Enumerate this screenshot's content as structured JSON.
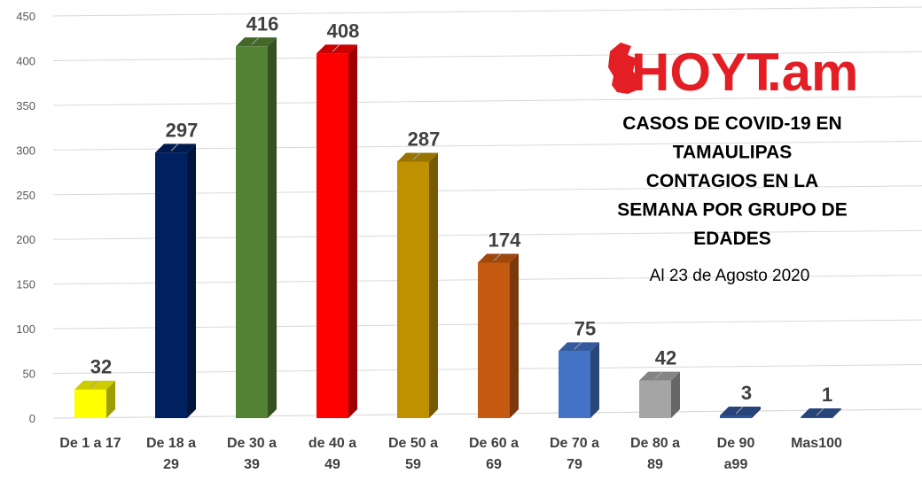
{
  "chart_data": {
    "type": "bar",
    "categories": [
      [
        "De 1 a 17"
      ],
      [
        "De 18 a",
        "29"
      ],
      [
        "De 30 a",
        "39"
      ],
      [
        "de 40 a",
        "49"
      ],
      [
        "De 50 a",
        "59"
      ],
      [
        "De 60 a",
        "69"
      ],
      [
        "De 70 a",
        "79"
      ],
      [
        "De 80 a",
        "89"
      ],
      [
        "De 90",
        "a99"
      ],
      [
        "Mas100"
      ]
    ],
    "values": [
      32,
      297,
      416,
      408,
      287,
      174,
      75,
      42,
      3,
      1
    ],
    "value_labels": [
      "32",
      "297",
      "416",
      "408",
      "287",
      "174",
      "75",
      "42",
      "3",
      "1"
    ],
    "colors": [
      "#FFFF00",
      "#002060",
      "#548235",
      "#FF0000",
      "#BF9000",
      "#C55A11",
      "#4472C4",
      "#A5A5A5",
      "#2F5597",
      "#2F5597"
    ],
    "ylim": [
      0,
      450
    ],
    "yticks": [
      "0",
      "50",
      "100",
      "150",
      "200",
      "250",
      "300",
      "350",
      "400",
      "450"
    ],
    "title_lines": [
      "CASOS DE COVID-19 EN",
      "TAMAULIPAS",
      "CONTAGIOS EN LA",
      "SEMANA POR GRUPO DE",
      "EDADES"
    ],
    "subtitle": "Al 23 de Agosto 2020",
    "grid": true,
    "legend": "none"
  },
  "logo": {
    "text_main": "HOYT",
    "text_suffix": ".am",
    "color": "#E31E24"
  }
}
